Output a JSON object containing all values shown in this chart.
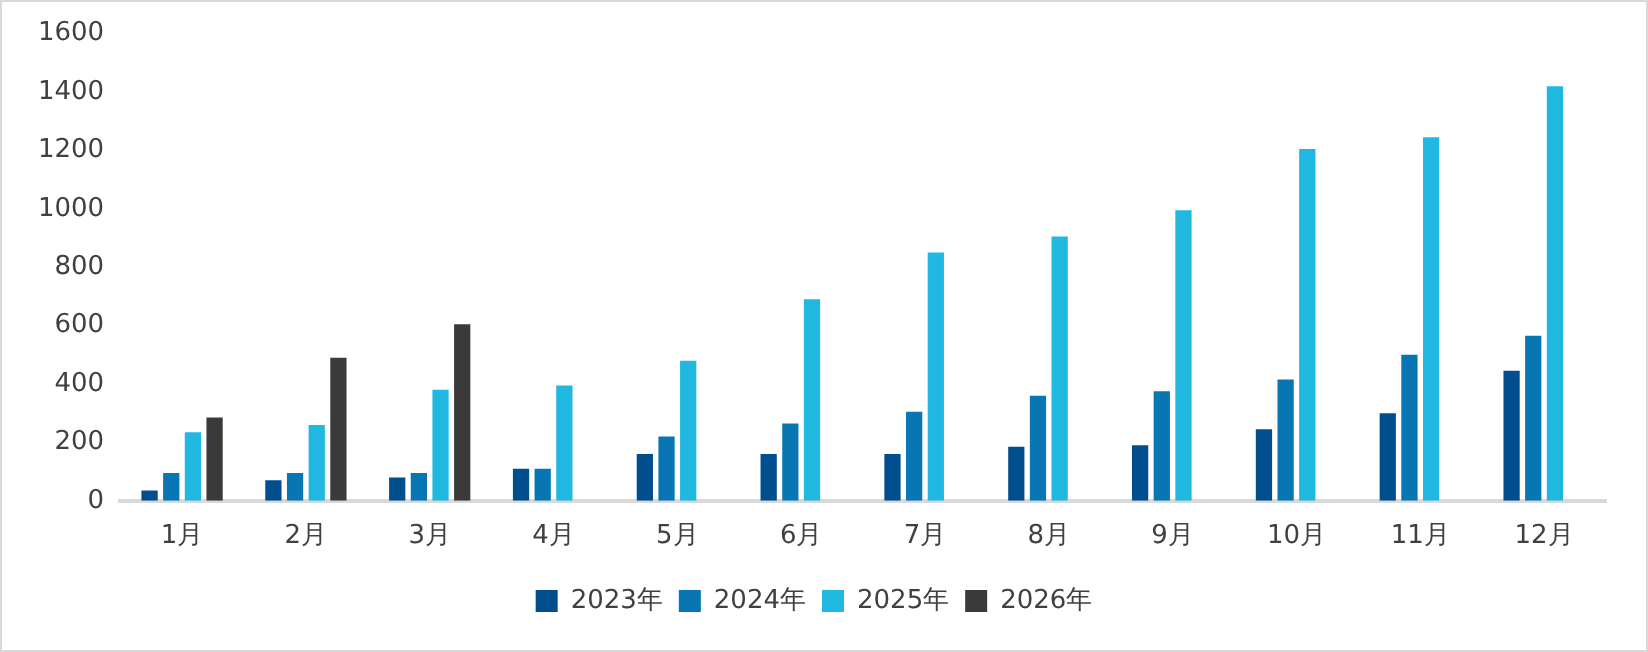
{
  "chart_data": {
    "type": "bar",
    "categories": [
      "1月",
      "2月",
      "3月",
      "4月",
      "5月",
      "6月",
      "7月",
      "8月",
      "9月",
      "10月",
      "11月",
      "12月"
    ],
    "series": [
      {
        "name": "2023年",
        "color": "#004e8e",
        "values": [
          35,
          70,
          80,
          110,
          160,
          160,
          160,
          185,
          190,
          245,
          300,
          445
        ]
      },
      {
        "name": "2024年",
        "color": "#0876b3",
        "values": [
          95,
          95,
          95,
          110,
          220,
          265,
          305,
          360,
          375,
          415,
          500,
          565
        ]
      },
      {
        "name": "2025年",
        "color": "#20b7e0",
        "values": [
          235,
          260,
          380,
          395,
          480,
          690,
          850,
          905,
          995,
          1205,
          1245,
          1420
        ]
      },
      {
        "name": "2026年",
        "color": "#3a3a3a",
        "values": [
          285,
          490,
          605,
          null,
          null,
          null,
          null,
          null,
          null,
          null,
          null,
          null
        ]
      }
    ],
    "ylim": [
      0,
      1600
    ],
    "yticks": [
      0,
      200,
      400,
      600,
      800,
      1000,
      1200,
      1400,
      1600
    ],
    "grid": false,
    "legend": "bottom"
  }
}
